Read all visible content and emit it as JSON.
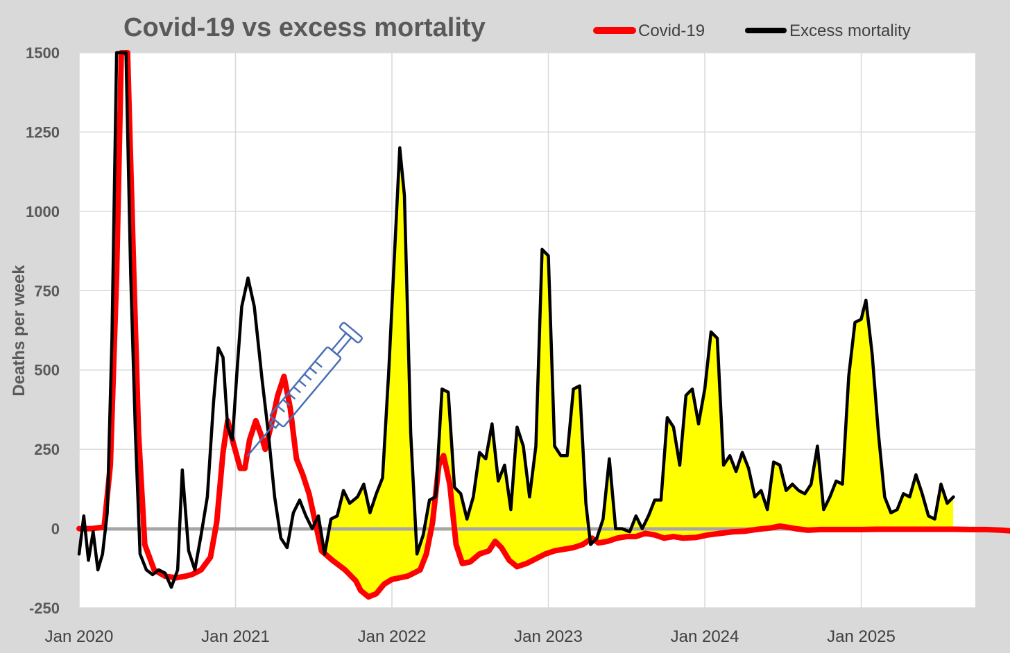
{
  "chart_data": {
    "type": "line",
    "title": "Covid-19 vs excess mortality",
    "ylabel": "Deaths per week",
    "xlabel": "",
    "ylim": [
      -250,
      1500
    ],
    "yticks": [
      -250,
      0,
      250,
      500,
      750,
      1000,
      1250,
      1500
    ],
    "xlim": [
      "2020-01",
      "2025-09"
    ],
    "xticks": [
      "Jan 2020",
      "Jan 2021",
      "Jan 2022",
      "Jan 2023",
      "Jan 2024",
      "Jan 2025"
    ],
    "grid": true,
    "legend_position": "top",
    "colors": {
      "covid": "#ff0000",
      "excess": "#000000",
      "fill": "#ffff00",
      "plot_bg": "#ffffff",
      "frame_bg": "#d9d9d9",
      "annotation": "#4a6fb5"
    },
    "annotation": "syringe-icon",
    "series": [
      {
        "name": "Covid-19",
        "points": [
          [
            2020.0,
            0
          ],
          [
            2020.08,
            0
          ],
          [
            2020.16,
            5
          ],
          [
            2020.2,
            200
          ],
          [
            2020.24,
            800
          ],
          [
            2020.27,
            1500
          ],
          [
            2020.31,
            1500
          ],
          [
            2020.35,
            800
          ],
          [
            2020.38,
            300
          ],
          [
            2020.42,
            -50
          ],
          [
            2020.48,
            -130
          ],
          [
            2020.55,
            -150
          ],
          [
            2020.62,
            -155
          ],
          [
            2020.68,
            -150
          ],
          [
            2020.72,
            -145
          ],
          [
            2020.78,
            -130
          ],
          [
            2020.84,
            -90
          ],
          [
            2020.88,
            20
          ],
          [
            2020.92,
            240
          ],
          [
            2020.95,
            340
          ],
          [
            2020.98,
            280
          ],
          [
            2021.03,
            190
          ],
          [
            2021.06,
            190
          ],
          [
            2021.09,
            280
          ],
          [
            2021.13,
            340
          ],
          [
            2021.16,
            300
          ],
          [
            2021.19,
            250
          ],
          [
            2021.23,
            330
          ],
          [
            2021.27,
            420
          ],
          [
            2021.31,
            480
          ],
          [
            2021.35,
            380
          ],
          [
            2021.39,
            220
          ],
          [
            2021.43,
            170
          ],
          [
            2021.47,
            110
          ],
          [
            2021.51,
            20
          ],
          [
            2021.55,
            -70
          ],
          [
            2021.62,
            -100
          ],
          [
            2021.7,
            -130
          ],
          [
            2021.77,
            -165
          ],
          [
            2021.8,
            -195
          ],
          [
            2021.85,
            -215
          ],
          [
            2021.9,
            -205
          ],
          [
            2021.95,
            -175
          ],
          [
            2022.0,
            -160
          ],
          [
            2022.05,
            -155
          ],
          [
            2022.1,
            -150
          ],
          [
            2022.14,
            -140
          ],
          [
            2022.18,
            -130
          ],
          [
            2022.22,
            -80
          ],
          [
            2022.26,
            20
          ],
          [
            2022.3,
            200
          ],
          [
            2022.33,
            230
          ],
          [
            2022.37,
            140
          ],
          [
            2022.41,
            -50
          ],
          [
            2022.45,
            -110
          ],
          [
            2022.5,
            -105
          ],
          [
            2022.56,
            -80
          ],
          [
            2022.62,
            -70
          ],
          [
            2022.66,
            -40
          ],
          [
            2022.7,
            -60
          ],
          [
            2022.75,
            -100
          ],
          [
            2022.8,
            -120
          ],
          [
            2022.86,
            -110
          ],
          [
            2022.92,
            -95
          ],
          [
            2022.98,
            -80
          ],
          [
            2023.04,
            -70
          ],
          [
            2023.1,
            -65
          ],
          [
            2023.16,
            -60
          ],
          [
            2023.22,
            -50
          ],
          [
            2023.28,
            -30
          ],
          [
            2023.32,
            -45
          ],
          [
            2023.38,
            -40
          ],
          [
            2023.44,
            -30
          ],
          [
            2023.5,
            -25
          ],
          [
            2023.56,
            -25
          ],
          [
            2023.62,
            -15
          ],
          [
            2023.68,
            -20
          ],
          [
            2023.74,
            -30
          ],
          [
            2023.8,
            -25
          ],
          [
            2023.86,
            -30
          ],
          [
            2023.94,
            -28
          ],
          [
            2024.02,
            -20
          ],
          [
            2024.1,
            -15
          ],
          [
            2024.18,
            -10
          ],
          [
            2024.26,
            -8
          ],
          [
            2024.34,
            -2
          ],
          [
            2024.42,
            2
          ],
          [
            2024.48,
            8
          ],
          [
            2024.52,
            5
          ],
          [
            2024.58,
            0
          ],
          [
            2024.66,
            -5
          ],
          [
            2024.74,
            -3
          ],
          [
            2024.82,
            -3
          ],
          [
            2024.9,
            -3
          ],
          [
            2025.0,
            -3
          ],
          [
            2025.1,
            -2
          ],
          [
            2025.2,
            -2
          ],
          [
            2025.3,
            -2
          ],
          [
            2025.4,
            -2
          ],
          [
            2025.5,
            -2
          ],
          [
            2025.6,
            -2
          ],
          [
            2025.7,
            -3
          ],
          [
            2025.8,
            -3
          ],
          [
            2025.9,
            -5
          ],
          [
            2025.98,
            -8
          ]
        ]
      },
      {
        "name": "Excess mortality",
        "points": [
          [
            2020.0,
            -80
          ],
          [
            2020.03,
            40
          ],
          [
            2020.06,
            -100
          ],
          [
            2020.09,
            -10
          ],
          [
            2020.12,
            -130
          ],
          [
            2020.15,
            -80
          ],
          [
            2020.18,
            50
          ],
          [
            2020.21,
            600
          ],
          [
            2020.24,
            1500
          ],
          [
            2020.27,
            1500
          ],
          [
            2020.3,
            1500
          ],
          [
            2020.33,
            800
          ],
          [
            2020.36,
            300
          ],
          [
            2020.39,
            -80
          ],
          [
            2020.43,
            -130
          ],
          [
            2020.47,
            -145
          ],
          [
            2020.51,
            -130
          ],
          [
            2020.55,
            -140
          ],
          [
            2020.59,
            -185
          ],
          [
            2020.63,
            -130
          ],
          [
            2020.66,
            185
          ],
          [
            2020.7,
            -70
          ],
          [
            2020.74,
            -130
          ],
          [
            2020.78,
            -20
          ],
          [
            2020.82,
            100
          ],
          [
            2020.86,
            400
          ],
          [
            2020.89,
            570
          ],
          [
            2020.92,
            540
          ],
          [
            2020.95,
            320
          ],
          [
            2020.98,
            280
          ],
          [
            2021.01,
            500
          ],
          [
            2021.04,
            700
          ],
          [
            2021.08,
            790
          ],
          [
            2021.12,
            700
          ],
          [
            2021.17,
            470
          ],
          [
            2021.21,
            300
          ],
          [
            2021.25,
            100
          ],
          [
            2021.29,
            -30
          ],
          [
            2021.33,
            -60
          ],
          [
            2021.37,
            50
          ],
          [
            2021.41,
            90
          ],
          [
            2021.45,
            40
          ],
          [
            2021.49,
            0
          ],
          [
            2021.53,
            40
          ],
          [
            2021.57,
            -80
          ],
          [
            2021.61,
            30
          ],
          [
            2021.65,
            40
          ],
          [
            2021.69,
            120
          ],
          [
            2021.73,
            80
          ],
          [
            2021.78,
            100
          ],
          [
            2021.82,
            140
          ],
          [
            2021.86,
            50
          ],
          [
            2021.9,
            110
          ],
          [
            2021.94,
            160
          ],
          [
            2021.98,
            500
          ],
          [
            2022.02,
            900
          ],
          [
            2022.05,
            1200
          ],
          [
            2022.08,
            1050
          ],
          [
            2022.12,
            300
          ],
          [
            2022.16,
            -80
          ],
          [
            2022.2,
            -20
          ],
          [
            2022.24,
            90
          ],
          [
            2022.28,
            100
          ],
          [
            2022.32,
            440
          ],
          [
            2022.36,
            430
          ],
          [
            2022.4,
            130
          ],
          [
            2022.44,
            110
          ],
          [
            2022.48,
            30
          ],
          [
            2022.52,
            100
          ],
          [
            2022.56,
            240
          ],
          [
            2022.6,
            220
          ],
          [
            2022.64,
            330
          ],
          [
            2022.68,
            150
          ],
          [
            2022.72,
            200
          ],
          [
            2022.76,
            60
          ],
          [
            2022.8,
            320
          ],
          [
            2022.84,
            260
          ],
          [
            2022.88,
            100
          ],
          [
            2022.92,
            260
          ],
          [
            2022.96,
            880
          ],
          [
            2023.0,
            860
          ],
          [
            2023.04,
            260
          ],
          [
            2023.08,
            230
          ],
          [
            2023.12,
            230
          ],
          [
            2023.16,
            440
          ],
          [
            2023.2,
            450
          ],
          [
            2023.24,
            80
          ],
          [
            2023.27,
            -50
          ],
          [
            2023.31,
            -30
          ],
          [
            2023.35,
            30
          ],
          [
            2023.39,
            220
          ],
          [
            2023.43,
            0
          ],
          [
            2023.47,
            0
          ],
          [
            2023.52,
            -10
          ],
          [
            2023.56,
            40
          ],
          [
            2023.6,
            0
          ],
          [
            2023.64,
            40
          ],
          [
            2023.68,
            90
          ],
          [
            2023.72,
            90
          ],
          [
            2023.76,
            350
          ],
          [
            2023.8,
            320
          ],
          [
            2023.84,
            200
          ],
          [
            2023.88,
            420
          ],
          [
            2023.92,
            440
          ],
          [
            2023.96,
            330
          ],
          [
            2024.0,
            440
          ],
          [
            2024.04,
            620
          ],
          [
            2024.08,
            600
          ],
          [
            2024.12,
            200
          ],
          [
            2024.16,
            230
          ],
          [
            2024.2,
            180
          ],
          [
            2024.24,
            240
          ],
          [
            2024.28,
            190
          ],
          [
            2024.32,
            100
          ],
          [
            2024.36,
            120
          ],
          [
            2024.4,
            60
          ],
          [
            2024.44,
            210
          ],
          [
            2024.48,
            200
          ],
          [
            2024.52,
            120
          ],
          [
            2024.56,
            140
          ],
          [
            2024.6,
            120
          ],
          [
            2024.64,
            110
          ],
          [
            2024.68,
            140
          ],
          [
            2024.72,
            260
          ],
          [
            2024.76,
            60
          ],
          [
            2024.8,
            100
          ],
          [
            2024.84,
            150
          ],
          [
            2024.88,
            140
          ],
          [
            2024.92,
            480
          ],
          [
            2024.96,
            650
          ],
          [
            2025.0,
            660
          ],
          [
            2025.03,
            720
          ],
          [
            2025.07,
            550
          ],
          [
            2025.11,
            300
          ],
          [
            2025.15,
            100
          ],
          [
            2025.19,
            50
          ],
          [
            2025.23,
            60
          ],
          [
            2025.27,
            110
          ],
          [
            2025.31,
            100
          ],
          [
            2025.35,
            170
          ],
          [
            2025.39,
            110
          ],
          [
            2025.43,
            40
          ],
          [
            2025.47,
            30
          ],
          [
            2025.51,
            140
          ],
          [
            2025.55,
            80
          ],
          [
            2025.59,
            100
          ]
        ]
      }
    ]
  }
}
